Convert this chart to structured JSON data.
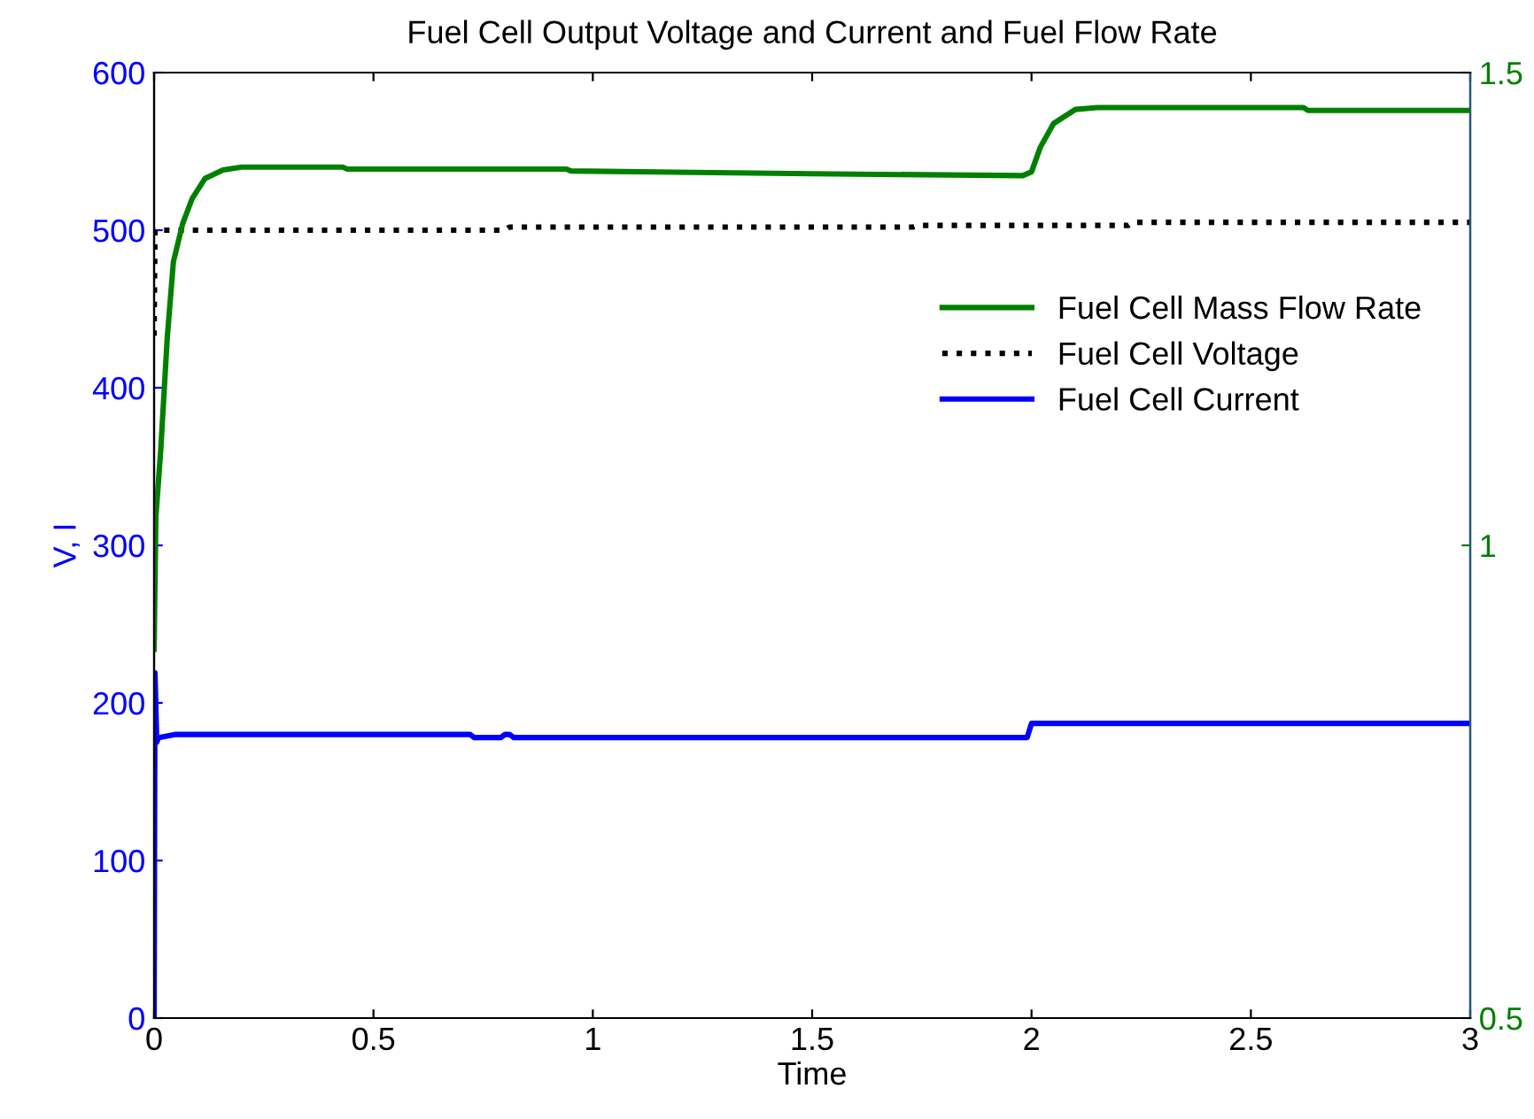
{
  "chart_data": {
    "type": "line",
    "title": "Fuel Cell Output Voltage and Current and Fuel Flow Rate",
    "xlabel": "Time",
    "ylabel": "V, I",
    "xlim": [
      0,
      3
    ],
    "xticks": [
      0,
      0.5,
      1,
      1.5,
      2,
      2.5,
      3
    ],
    "ylim": [
      0,
      600
    ],
    "yticks": [
      0,
      100,
      200,
      300,
      400,
      500,
      600
    ],
    "y2lim": [
      0.5,
      1.5
    ],
    "y2ticks": [
      0.5,
      1,
      1.5
    ],
    "legend": "right",
    "grid": false,
    "series": [
      {
        "name": "Fuel Cell Mass Flow Rate",
        "color": "#008000",
        "axis": "y2",
        "line_style": "solid",
        "x": [
          0,
          0.004,
          0.015,
          0.03,
          0.044,
          0.065,
          0.087,
          0.116,
          0.157,
          0.2,
          0.43,
          0.44,
          0.94,
          0.95,
          1.5,
          1.98,
          2.0,
          2.02,
          2.05,
          2.1,
          2.15,
          2.62,
          2.63,
          3
        ],
        "values": [
          0.89,
          1.03,
          1.1,
          1.22,
          1.3,
          1.34,
          1.367,
          1.388,
          1.397,
          1.4,
          1.4,
          1.398,
          1.398,
          1.396,
          1.393,
          1.391,
          1.395,
          1.421,
          1.446,
          1.461,
          1.463,
          1.463,
          1.46,
          1.46
        ]
      },
      {
        "name": "Fuel Cell Voltage",
        "color": "#000000",
        "line_style": "dotted",
        "x": [
          0,
          0.002,
          0.8,
          0.81,
          1.73,
          1.74,
          2.22,
          2.23,
          3
        ],
        "values": [
          433,
          500,
          500,
          502,
          502,
          503,
          503,
          505,
          505
        ]
      },
      {
        "name": "Fuel Cell Current",
        "color": "#0000ff",
        "line_style": "solid",
        "x": [
          0,
          0.002,
          0.006,
          0.01,
          0.05,
          0.72,
          0.73,
          0.79,
          0.8,
          0.81,
          0.82,
          1.99,
          2.0,
          3
        ],
        "values": [
          0,
          219,
          175,
          178,
          180,
          180,
          178,
          178,
          180,
          180,
          178,
          178,
          187,
          187
        ]
      }
    ]
  }
}
